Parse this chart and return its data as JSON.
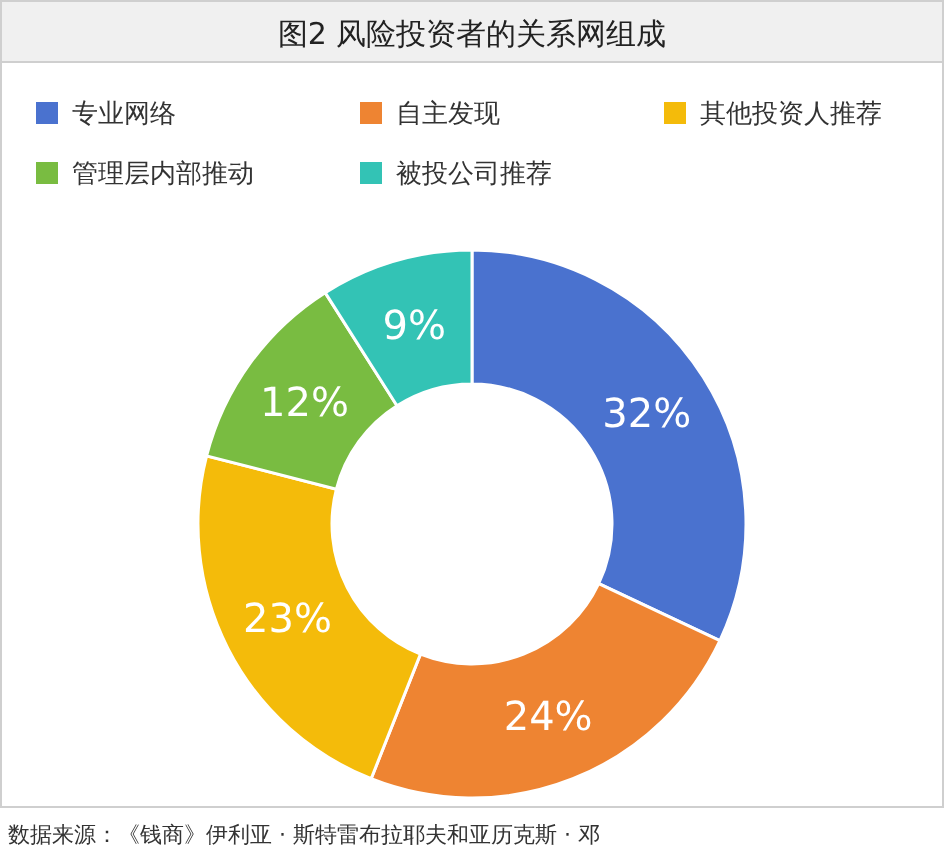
{
  "chart_data": {
    "type": "donut",
    "title": "图2 风险投资者的关系网组成",
    "categories": [
      "专业网络",
      "自主发现",
      "其他投资人推荐",
      "管理层内部推动",
      "被投公司推荐"
    ],
    "values": [
      32,
      24,
      23,
      12,
      9
    ],
    "colors": [
      "#4a72cf",
      "#ee8432",
      "#f4bb0a",
      "#79bc41",
      "#33c3b5"
    ],
    "value_labels": [
      "32%",
      "24%",
      "23%",
      "12%",
      "9%"
    ],
    "legend": "top",
    "annotations": [
      "数据来源：《钱商》伊利亚 · 斯特雷布拉耶夫和亚历克斯 · 邓"
    ]
  }
}
